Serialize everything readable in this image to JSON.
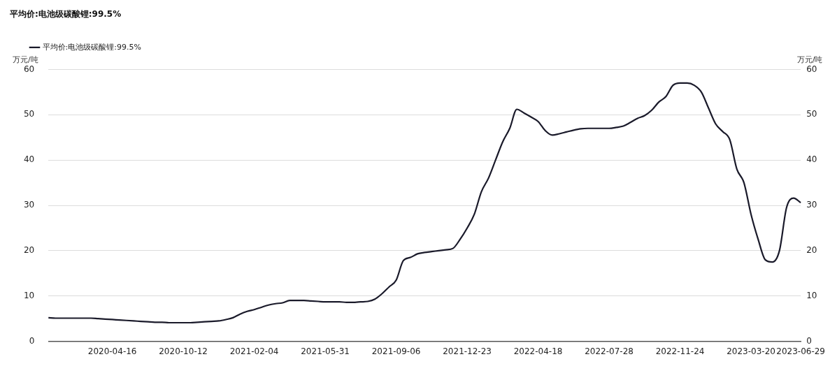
{
  "chart_data": {
    "type": "line",
    "title": "平均价:电池级碳酸锂:99.5%",
    "ylabel": "万元/吨",
    "y2label": "万元/吨",
    "categories": [
      null,
      null,
      null,
      null,
      null,
      null,
      null,
      null,
      null,
      "2020-04-16",
      null,
      null,
      null,
      null,
      null,
      null,
      null,
      null,
      null,
      "2020-10-12",
      null,
      null,
      null,
      null,
      null,
      null,
      null,
      null,
      null,
      "2021-02-04",
      null,
      null,
      null,
      null,
      null,
      null,
      null,
      null,
      null,
      "2021-05-31",
      null,
      null,
      null,
      null,
      null,
      null,
      null,
      null,
      null,
      "2021-09-06",
      null,
      null,
      null,
      null,
      null,
      null,
      null,
      null,
      null,
      "2021-12-23",
      null,
      null,
      null,
      null,
      null,
      null,
      null,
      null,
      null,
      "2022-04-18",
      null,
      null,
      null,
      null,
      null,
      null,
      null,
      null,
      null,
      "2022-07-28",
      null,
      null,
      null,
      null,
      null,
      null,
      null,
      null,
      null,
      "2022-11-24",
      null,
      null,
      null,
      null,
      null,
      null,
      null,
      null,
      null,
      "2023-03-20",
      null,
      null,
      null,
      null,
      null,
      null,
      "2023-06-29"
    ],
    "series": [
      {
        "name": "平均价:电池级碳酸锂:99.5%",
        "color": "#1a1a2a",
        "values": [
          5.2,
          5.1,
          5.1,
          5.1,
          5.1,
          5.1,
          5.1,
          5.0,
          4.9,
          4.8,
          4.7,
          4.6,
          4.5,
          4.4,
          4.3,
          4.2,
          4.2,
          4.1,
          4.1,
          4.1,
          4.1,
          4.2,
          4.3,
          4.4,
          4.5,
          4.8,
          5.2,
          6.0,
          6.6,
          7.0,
          7.5,
          8.0,
          8.3,
          8.5,
          9.0,
          9.0,
          9.0,
          8.9,
          8.8,
          8.7,
          8.7,
          8.7,
          8.6,
          8.6,
          8.7,
          8.8,
          9.3,
          10.5,
          12,
          13.5,
          17.8,
          18.5,
          19.3,
          19.6,
          19.8,
          20,
          20.2,
          20.5,
          22.5,
          25,
          28,
          33,
          36,
          40,
          44,
          47,
          51.2,
          50.4,
          49.5,
          48.5,
          46.5,
          45.5,
          45.8,
          46.2,
          46.6,
          46.9,
          47,
          47,
          47,
          47,
          47.2,
          47.5,
          48.3,
          49.2,
          49.8,
          51,
          52.8,
          54,
          56.5,
          57,
          57,
          56.5,
          55,
          51.5,
          48,
          46.3,
          44.5,
          38,
          35,
          28,
          22.5,
          18,
          17.5,
          20,
          29.5,
          31.6,
          30.6
        ]
      }
    ],
    "ylim": [
      0,
      60
    ],
    "yticks": [
      0,
      10,
      20,
      30,
      40,
      50,
      60
    ],
    "y2lim": [
      0,
      60
    ],
    "y2ticks": [
      0,
      10,
      20,
      30,
      40,
      50,
      60
    ],
    "grid": "y",
    "legend": "top left",
    "marker": "none",
    "line_style": "solid"
  }
}
